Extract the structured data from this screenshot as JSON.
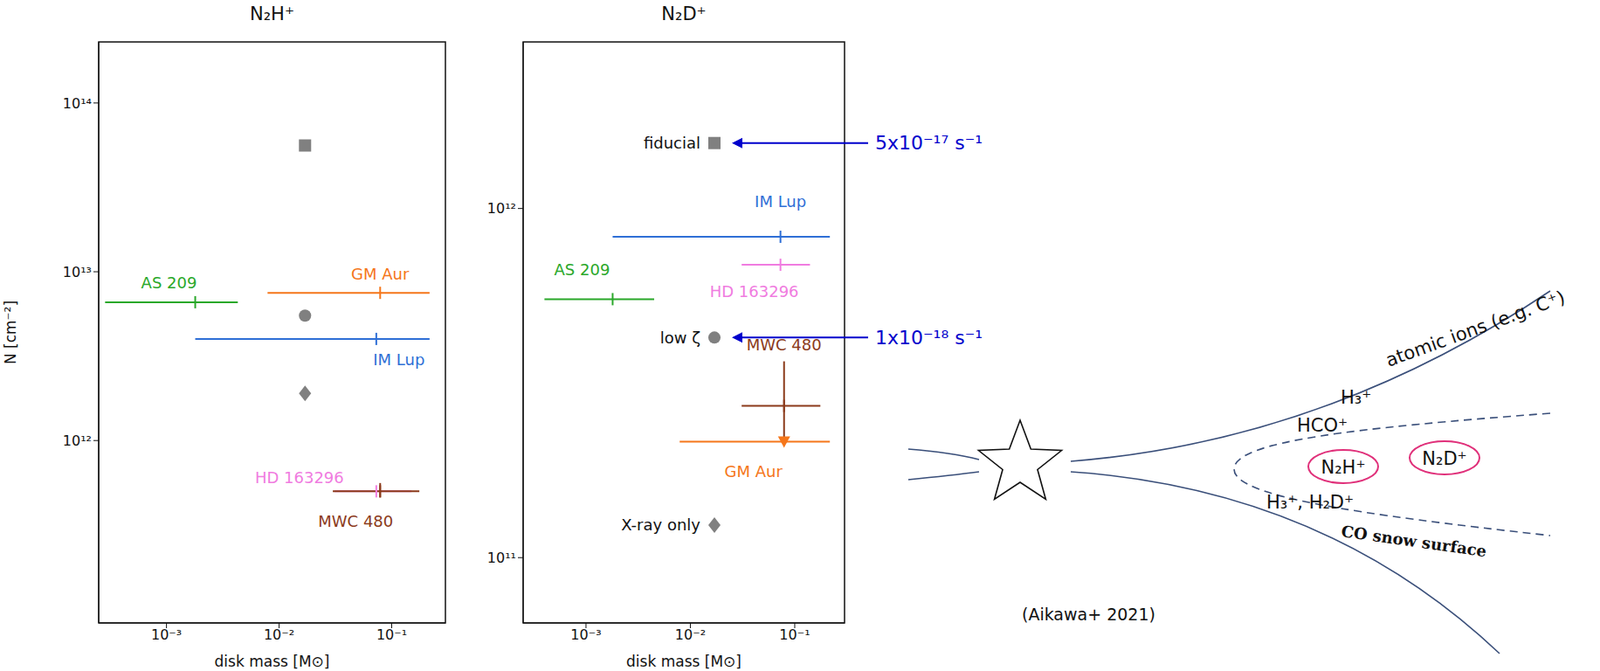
{
  "chart_data": [
    {
      "type": "scatter",
      "title": "N₂H⁺",
      "xlabel": "disk mass [M⊙]",
      "ylabel": "N [cm⁻²]",
      "log": true,
      "xlim": [
        0.00025,
        0.3
      ],
      "ylim": [
        83000000000.0,
        230000000000000.0
      ],
      "xticks": [
        {
          "value": 0.001,
          "label": "10⁻³"
        },
        {
          "value": 0.01,
          "label": "10⁻²"
        },
        {
          "value": 0.1,
          "label": "10⁻¹"
        }
      ],
      "yticks": [
        {
          "value": 1000000000000.0,
          "label": "10¹²"
        },
        {
          "value": 10000000000000.0,
          "label": "10¹³"
        },
        {
          "value": 100000000000000.0,
          "label": "10¹⁴"
        }
      ],
      "series": [
        {
          "color": "#808080",
          "marker": "square",
          "x": 0.017,
          "y": 56000000000000.0
        },
        {
          "color": "#808080",
          "marker": "circle",
          "x": 0.017,
          "y": 5500000000000.0
        },
        {
          "color": "#808080",
          "marker": "diamond",
          "x": 0.017,
          "y": 1900000000000.0
        },
        {
          "name": "AS 209",
          "color": "#2aa82a",
          "marker": "vline",
          "x": 0.0018,
          "y": 6600000000000.0,
          "x_range": [
            0.000285,
            0.0043
          ]
        },
        {
          "name": "GM Aur",
          "color": "#f5761a",
          "marker": "vline",
          "x": 0.079,
          "y": 7500000000000.0,
          "x_range": [
            0.0079,
            0.217
          ]
        },
        {
          "name": "IM Lup",
          "color": "#2f6fd6",
          "marker": "vline",
          "x": 0.073,
          "y": 4000000000000.0,
          "x_range": [
            0.0018,
            0.217
          ]
        },
        {
          "name": "HD 163296",
          "color": "#f07ce0",
          "marker": "vline",
          "x": 0.073,
          "y": 500000000000.0,
          "x_range": [
            0.031,
            0.15
          ]
        },
        {
          "name": "MWC 480",
          "color": "#8b3a1a",
          "marker": "vline",
          "x": 0.079,
          "y": 500000000000.0,
          "x_range": [
            0.03,
            0.176
          ],
          "y_range": [
            460000000000.0,
            560000000000.0
          ]
        }
      ]
    },
    {
      "type": "scatter",
      "title": "N₂D⁺",
      "xlabel": "disk mass [M⊙]",
      "log": true,
      "xlim": [
        0.00025,
        0.3
      ],
      "ylim": [
        65000000000.0,
        3000000000000.0
      ],
      "xticks": [
        {
          "value": 0.001,
          "label": "10⁻³"
        },
        {
          "value": 0.01,
          "label": "10⁻²"
        },
        {
          "value": 0.1,
          "label": "10⁻¹"
        }
      ],
      "yticks": [
        {
          "value": 100000000000.0,
          "label": "10¹¹"
        },
        {
          "value": 1000000000000.0,
          "label": "10¹²"
        }
      ],
      "series": [
        {
          "name": "fiducial",
          "color": "#808080",
          "marker": "square",
          "x": 0.017,
          "y": 1540000000000.0,
          "annotation": "5x10⁻¹⁷ s⁻¹"
        },
        {
          "name": "low ζ",
          "color": "#808080",
          "marker": "circle",
          "x": 0.017,
          "y": 427000000000.0,
          "annotation": "1x10⁻¹⁸ s⁻¹"
        },
        {
          "name": "X-ray only",
          "color": "#808080",
          "marker": "diamond",
          "x": 0.017,
          "y": 124000000000.0
        },
        {
          "name": "IM Lup",
          "color": "#2f6fd6",
          "marker": "vline",
          "x": 0.073,
          "y": 830000000000.0,
          "x_range": [
            0.0018,
            0.217
          ]
        },
        {
          "name": "AS 209",
          "color": "#2aa82a",
          "marker": "vline",
          "x": 0.0018,
          "y": 550000000000.0,
          "x_range": [
            0.0004,
            0.0045
          ]
        },
        {
          "name": "HD 163296",
          "color": "#f07ce0",
          "marker": "vline",
          "x": 0.073,
          "y": 690000000000.0,
          "x_range": [
            0.031,
            0.14
          ]
        },
        {
          "name": "MWC 480",
          "color": "#8b3a1a",
          "marker": "vline",
          "x": 0.079,
          "y": 272000000000.0,
          "x_range": [
            0.031,
            0.176
          ],
          "y_range": [
            220000000000.0,
            365000000000.0
          ]
        },
        {
          "name": "GM Aur",
          "color": "#f5761a",
          "marker": "triangle-down",
          "x": 0.079,
          "y": 215000000000.0,
          "x_range": [
            0.0079,
            0.217
          ]
        }
      ]
    }
  ],
  "diagram": {
    "layer_labels": [
      "atomic ions (e.g. C⁺)",
      "H₃⁺",
      "HCO⁺",
      "N₂H⁺",
      "H₃⁺, H₂D⁺"
    ],
    "outer_label": "N₂D⁺",
    "surface_label": "CO snow surface",
    "citation": "(Aikawa+ 2021)"
  }
}
